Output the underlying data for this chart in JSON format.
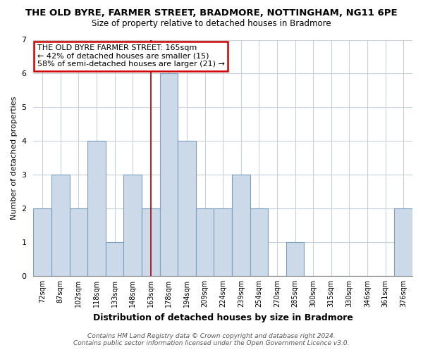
{
  "title": "THE OLD BYRE, FARMER STREET, BRADMORE, NOTTINGHAM, NG11 6PE",
  "subtitle": "Size of property relative to detached houses in Bradmore",
  "xlabel": "Distribution of detached houses by size in Bradmore",
  "ylabel": "Number of detached properties",
  "categories": [
    "72sqm",
    "87sqm",
    "102sqm",
    "118sqm",
    "133sqm",
    "148sqm",
    "163sqm",
    "178sqm",
    "194sqm",
    "209sqm",
    "224sqm",
    "239sqm",
    "254sqm",
    "270sqm",
    "285sqm",
    "300sqm",
    "315sqm",
    "330sqm",
    "346sqm",
    "361sqm",
    "376sqm"
  ],
  "values": [
    2,
    3,
    2,
    4,
    1,
    3,
    2,
    6,
    4,
    2,
    2,
    3,
    2,
    0,
    1,
    0,
    0,
    0,
    0,
    0,
    2
  ],
  "bar_color": "#ccd9e8",
  "bar_edge_color": "#7aa0c0",
  "ylim": [
    0,
    7
  ],
  "yticks": [
    0,
    1,
    2,
    3,
    4,
    5,
    6,
    7
  ],
  "annotation_title": "THE OLD BYRE FARMER STREET: 165sqm",
  "annotation_line1": "← 42% of detached houses are smaller (15)",
  "annotation_line2": "58% of semi-detached houses are larger (21) →",
  "annotation_box_color": "#ffffff",
  "annotation_box_edge": "#cc0000",
  "subject_bar_index": 6,
  "subject_line_color": "#aa0000",
  "footer1": "Contains HM Land Registry data © Crown copyright and database right 2024.",
  "footer2": "Contains public sector information licensed under the Open Government Licence v3.0.",
  "plot_bg_color": "#ffffff",
  "fig_bg_color": "#ffffff",
  "grid_color": "#c8d0d8",
  "title_fontsize": 9.5,
  "subtitle_fontsize": 8.5
}
